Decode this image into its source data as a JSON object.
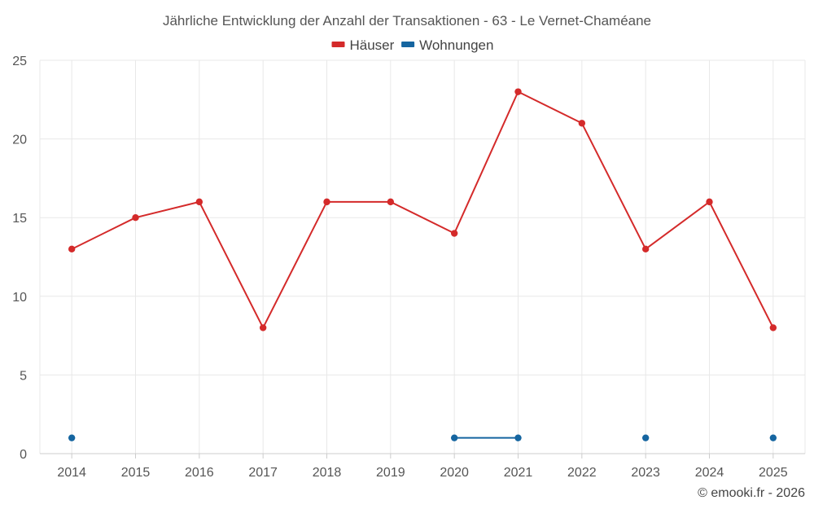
{
  "chart_data": {
    "type": "line",
    "title": "Jährliche Entwicklung der Anzahl der Transaktionen - 63 - Le Vernet-Chaméane",
    "categories": [
      "2014",
      "2015",
      "2016",
      "2017",
      "2018",
      "2019",
      "2020",
      "2021",
      "2022",
      "2023",
      "2024",
      "2025"
    ],
    "ylim": [
      0,
      25
    ],
    "yticks": [
      0,
      5,
      10,
      15,
      20,
      25
    ],
    "grid": true,
    "legend_position": "top-center",
    "series": [
      {
        "name": "Häuser",
        "color": "#d42a2a",
        "values": [
          13,
          15,
          16,
          8,
          16,
          16,
          14,
          23,
          21,
          13,
          16,
          8
        ]
      },
      {
        "name": "Wohnungen",
        "color": "#1565a0",
        "values": [
          1,
          null,
          null,
          null,
          null,
          null,
          1,
          1,
          null,
          1,
          null,
          1
        ]
      }
    ]
  },
  "credit": "© emooki.fr - 2026"
}
